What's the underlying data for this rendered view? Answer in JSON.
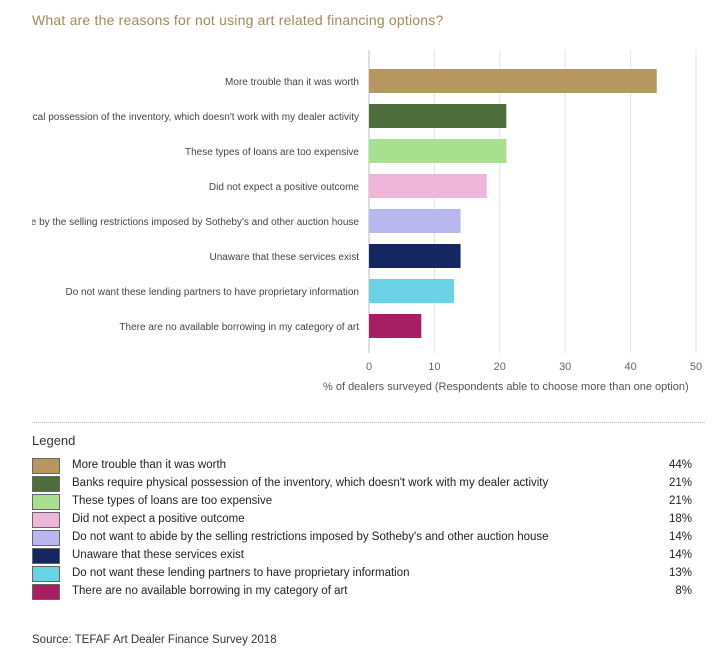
{
  "title": "What are the reasons for not using art related financing options?",
  "chart_data": {
    "type": "bar",
    "orientation": "horizontal",
    "title": "What are the reasons for not using art related financing options?",
    "categories": [
      "More trouble than it was worth",
      "Banks require physical possession of the inventory, which doesn't work with my dealer activity",
      "These types of loans are too expensive",
      "Did not expect a positive outcome",
      "Do not want to abide by the selling restrictions imposed by Sotheby's and other auction house",
      "Unaware that these services exist",
      "Do not want these lending partners to have proprietary information",
      "There are no available borrowing in my category of art"
    ],
    "values": [
      44,
      21,
      21,
      18,
      14,
      14,
      13,
      8
    ],
    "colors": [
      "#b5975f",
      "#4e6f3b",
      "#a8e08f",
      "#f0b6d9",
      "#b8b8ee",
      "#152660",
      "#6ad4e6",
      "#a61f62"
    ],
    "xlabel": "% of dealers surveyed (Respondents able to choose more than one option)",
    "ylabel": "",
    "xlim": [
      0,
      50
    ],
    "xticks": [
      0,
      10,
      20,
      30,
      40,
      50
    ],
    "grid": true
  },
  "legend": {
    "title": "Legend",
    "items": [
      {
        "label": "More trouble than it was worth",
        "value": "44%",
        "color": "#b5975f"
      },
      {
        "label": "Banks require physical possession of the inventory, which doesn't work with my dealer activity",
        "value": "21%",
        "color": "#4e6f3b"
      },
      {
        "label": "These types of loans are too expensive",
        "value": "21%",
        "color": "#a8e08f"
      },
      {
        "label": "Did not expect a positive outcome",
        "value": "18%",
        "color": "#f0b6d9"
      },
      {
        "label": "Do not want to abide by the selling restrictions imposed by Sotheby's and other auction house",
        "value": "14%",
        "color": "#b8b8ee"
      },
      {
        "label": "Unaware that these services exist",
        "value": "14%",
        "color": "#152660"
      },
      {
        "label": "Do not want these lending partners to have proprietary information",
        "value": "13%",
        "color": "#6ad4e6"
      },
      {
        "label": "There are no available borrowing in my category of art",
        "value": "8%",
        "color": "#a61f62"
      }
    ]
  },
  "source": "Source: TEFAF Art Dealer Finance Survey 2018"
}
